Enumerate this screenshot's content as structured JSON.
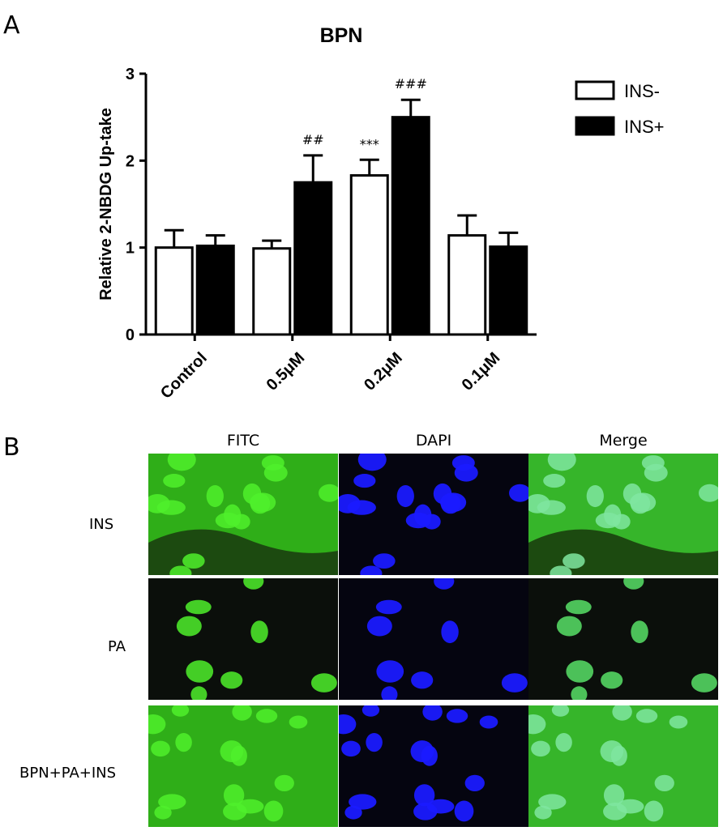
{
  "panel_a_label": "A",
  "panel_b_label": "B",
  "chart_data": {
    "type": "bar",
    "title": "BPN",
    "ylabel": "Relative 2-NBDG Up-take",
    "xlabel": "",
    "ylim": [
      0,
      3
    ],
    "yticks": [
      "0",
      "1",
      "2",
      "3"
    ],
    "categories": [
      "Control",
      "0.5μM",
      "0.2μM",
      "0.1μM"
    ],
    "legend_position": "top-right",
    "series": [
      {
        "name": "INS-",
        "color": "#ffffff",
        "values": [
          1.0,
          0.99,
          1.83,
          1.14
        ],
        "errors": [
          0.2,
          0.09,
          0.18,
          0.23
        ],
        "annotations": [
          "",
          "",
          "***",
          ""
        ]
      },
      {
        "name": "INS+",
        "color": "#000000",
        "values": [
          1.02,
          1.75,
          2.5,
          1.01
        ],
        "errors": [
          0.12,
          0.31,
          0.2,
          0.16
        ],
        "annotations": [
          "",
          "##",
          "###",
          ""
        ]
      }
    ]
  },
  "panel_b": {
    "columns": [
      "FITC",
      "DAPI",
      "Merge"
    ],
    "rows": [
      "INS",
      "PA",
      "BPN+PA+INS"
    ],
    "colors": {
      "fitc": "#39d21e",
      "dapi": "#1a1aff",
      "merge": "#3fd83a",
      "background": "#0b0f0b"
    }
  }
}
